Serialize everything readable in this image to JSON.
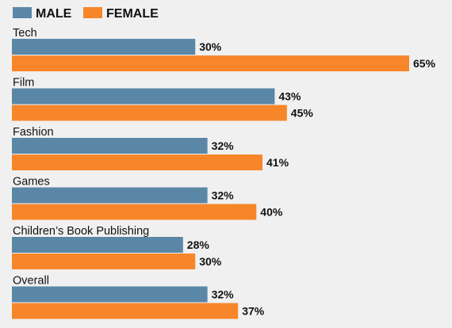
{
  "chart_data": {
    "type": "bar",
    "orientation": "horizontal",
    "categories": [
      "Tech",
      "Film",
      "Fashion",
      "Games",
      "Children’s Book Publishing",
      "Overall"
    ],
    "series": [
      {
        "name": "MALE",
        "values": [
          30,
          43,
          32,
          32,
          28,
          32
        ],
        "labels": [
          "30%",
          "43%",
          "32%",
          "32%",
          "28%",
          "32%"
        ],
        "color": "#5b87a6"
      },
      {
        "name": "FEMALE",
        "values": [
          65,
          45,
          41,
          40,
          30,
          37
        ],
        "labels": [
          "65%",
          "45%",
          "41%",
          "40%",
          "30%",
          "37%"
        ],
        "color": "#f7862a"
      }
    ],
    "xlim": [
      0,
      65
    ],
    "grid": false,
    "legend_position": "top-left",
    "title": "",
    "xlabel": "",
    "ylabel": ""
  }
}
